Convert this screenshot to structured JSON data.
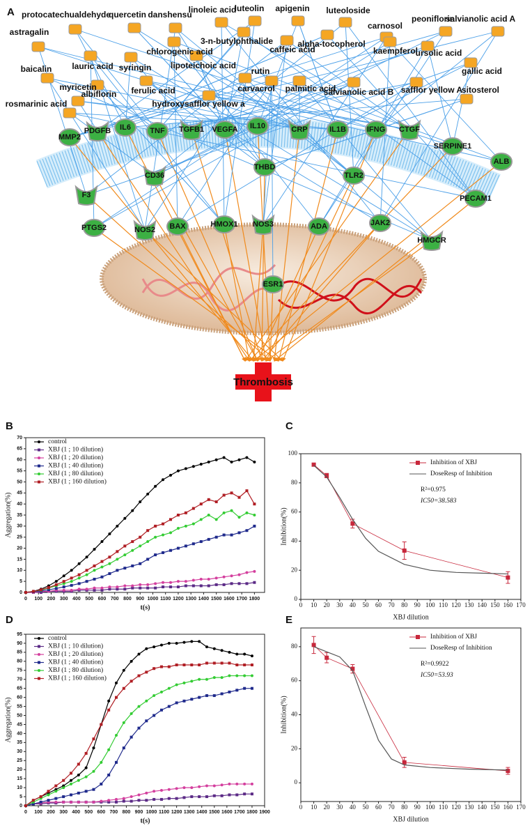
{
  "panel_labels": [
    "A",
    "B",
    "C",
    "D",
    "E"
  ],
  "diagram": {
    "compounds": [
      "protocatechualdehyde",
      "quercetin",
      "danshensu",
      "linoleic acid",
      "luteolin",
      "apigenin",
      "luteoloside",
      "carnosol",
      "peoniflorin",
      "salvianolic acid A",
      "astragalin",
      "chlorogenic acid",
      "3-n-butylphthalide",
      "caffeic acid",
      "alpha-tocopherol",
      "kaempferol",
      "ursolic acid",
      "gallic acid",
      "lauric acid",
      "syringin",
      "lipoteichoic acid",
      "hydroxysafflor yellow a",
      "carvacrol",
      "rutin",
      "palmitic acid",
      "salvianolic acid B",
      "safflor yellow A",
      "sitosterol",
      "baicalin",
      "ferulic acid",
      "albiflorin",
      "myricetin",
      "rosmarinic acid"
    ],
    "targets": [
      "IL6",
      "PDGFB",
      "MMP2",
      "TNF",
      "TGFB1",
      "VEGFA",
      "IL10",
      "CRP",
      "IL1B",
      "IFNG",
      "CTGF",
      "SERPINE1",
      "ALB",
      "CD36",
      "THBD",
      "TLR2",
      "F3",
      "PECAM1",
      "PTGS2",
      "NOS2",
      "BAX",
      "HMOX1",
      "NOS3",
      "ADA",
      "JAK2",
      "HMGCR",
      "ESR1"
    ],
    "outcome": "Thrombosis"
  },
  "chart_data": [
    {
      "type": "line",
      "xlabel": "t(s)",
      "ylabel": "Aggregation(%)",
      "x": [
        0,
        60,
        120,
        180,
        240,
        300,
        360,
        420,
        480,
        540,
        600,
        660,
        720,
        780,
        840,
        900,
        960,
        1020,
        1080,
        1140,
        1200,
        1260,
        1320,
        1380,
        1440,
        1500,
        1560,
        1620,
        1680,
        1740,
        1800
      ],
      "series": [
        {
          "name": "control",
          "color": "#000000",
          "values": [
            0,
            0.5,
            1.5,
            3,
            5,
            7.5,
            10,
            13,
            16,
            19.5,
            23,
            26.5,
            30,
            33.5,
            37,
            41,
            44.5,
            48,
            51,
            53,
            55,
            56,
            57,
            58,
            59,
            60,
            61,
            59,
            60,
            61,
            59
          ]
        },
        {
          "name": "XBJ (1 ; 10 dilution)",
          "color": "#5b2a86",
          "values": [
            0,
            0,
            0,
            0.5,
            0.5,
            0.5,
            0.5,
            1,
            1,
            1,
            1,
            1.5,
            1.5,
            1.5,
            2,
            2,
            2,
            2,
            2.5,
            2.5,
            2.5,
            3,
            3,
            3,
            3,
            3.5,
            3.5,
            4,
            4,
            4,
            4.5
          ]
        },
        {
          "name": "XBJ (1 ; 20 dilution)",
          "color": "#d43f9e",
          "values": [
            0,
            0,
            0.5,
            0.5,
            1,
            1,
            1,
            1.5,
            1.5,
            2,
            2,
            2.5,
            2.5,
            3,
            3,
            3.5,
            3.5,
            4,
            4.5,
            4.5,
            5,
            5,
            5.5,
            6,
            6,
            6.5,
            7,
            7.5,
            8,
            9,
            9.5
          ]
        },
        {
          "name": "XBJ (1 ; 40 dilution)",
          "color": "#1f2a8c",
          "values": [
            0,
            0.3,
            0.7,
            1.2,
            1.8,
            2.5,
            3.2,
            4,
            5,
            6,
            7,
            8.5,
            10,
            11,
            12,
            13,
            15,
            17,
            18,
            19,
            20,
            21,
            22,
            23,
            24,
            25,
            26,
            26,
            27,
            28,
            30
          ]
        },
        {
          "name": "XBJ (1 ; 80 dilution)",
          "color": "#33cc33",
          "values": [
            0,
            0.5,
            1,
            2,
            3,
            4,
            5,
            6.5,
            8,
            10,
            11.5,
            13,
            15,
            17,
            19,
            21,
            23,
            25,
            26,
            27,
            29,
            30,
            31,
            33,
            35,
            33,
            36,
            37,
            34,
            36,
            35
          ]
        },
        {
          "name": "XBJ (1 ; 160 dilution)",
          "color": "#b01e24",
          "values": [
            0,
            0.5,
            1.2,
            2.2,
            3.5,
            5,
            6.5,
            8,
            10,
            12,
            14,
            16,
            18.5,
            21,
            23,
            25,
            28,
            30,
            31,
            33,
            35,
            36,
            38,
            40,
            42,
            41,
            44,
            45,
            43,
            46,
            40
          ]
        }
      ],
      "xlim": [
        0,
        1880
      ],
      "ylim": [
        0,
        70
      ],
      "xticks": [
        0,
        100,
        200,
        300,
        400,
        500,
        600,
        700,
        800,
        900,
        1000,
        1100,
        1200,
        1300,
        1400,
        1500,
        1600,
        1700,
        1800
      ],
      "yticks": [
        0,
        5,
        10,
        15,
        20,
        25,
        30,
        35,
        40,
        45,
        50,
        55,
        60,
        65,
        70
      ],
      "legend": "upper left"
    },
    {
      "type": "scatter",
      "xlabel": "XBJ dilution",
      "ylabel": "Inhibition(%)",
      "x": [
        10,
        20,
        40,
        80,
        160
      ],
      "series": [
        {
          "name": "Inhibition of XBJ",
          "color": "#c8283c",
          "values": [
            92.5,
            85,
            52,
            33.5,
            15
          ],
          "errors": [
            1,
            1.5,
            3,
            6,
            4
          ]
        },
        {
          "name": "DoseResp of Inhibition",
          "color": "#555555",
          "x": [
            10,
            20,
            30,
            40,
            50,
            60,
            80,
            100,
            120,
            140,
            160
          ],
          "values": [
            92,
            84,
            70,
            55,
            42,
            33,
            24,
            20,
            18.5,
            18,
            17.5
          ]
        }
      ],
      "annotations": [
        "R²=0.975",
        "IC50=38.583"
      ],
      "xlim": [
        0,
        170
      ],
      "ylim": [
        0,
        100
      ],
      "xticks": [
        0,
        10,
        20,
        30,
        40,
        50,
        60,
        70,
        80,
        90,
        100,
        110,
        120,
        130,
        140,
        150,
        160,
        170
      ],
      "yticks": [
        0,
        20,
        40,
        60,
        80,
        100
      ],
      "legend": "upper right"
    },
    {
      "type": "line",
      "xlabel": "t(s)",
      "ylabel": "Aggregation(%)",
      "x": [
        0,
        60,
        120,
        180,
        240,
        300,
        360,
        420,
        480,
        540,
        600,
        660,
        720,
        780,
        840,
        900,
        960,
        1020,
        1080,
        1140,
        1200,
        1260,
        1320,
        1380,
        1440,
        1500,
        1560,
        1620,
        1680,
        1740,
        1800
      ],
      "series": [
        {
          "name": "control",
          "color": "#000000",
          "values": [
            0,
            3,
            5,
            7,
            9,
            11,
            14,
            17,
            21,
            32,
            45,
            58,
            68,
            75,
            80,
            84,
            87,
            88,
            89,
            90,
            90,
            90.5,
            91,
            91,
            88,
            87,
            86,
            85,
            84,
            84,
            83
          ]
        },
        {
          "name": "XBJ (1 ; 10 dilution)",
          "color": "#5b2a86",
          "values": [
            0,
            1,
            1,
            1.5,
            1.5,
            2,
            2,
            2,
            2,
            2,
            2,
            2,
            2,
            2.5,
            2.5,
            3,
            3,
            3.5,
            3.5,
            4,
            4,
            4.5,
            5,
            5,
            5,
            5.5,
            5.5,
            6,
            6,
            6.5,
            6.5
          ]
        },
        {
          "name": "XBJ (1 ; 20 dilution)",
          "color": "#d43f9e",
          "values": [
            0,
            1,
            1.5,
            2,
            2,
            2,
            2,
            2,
            2,
            2,
            2.5,
            3,
            3.5,
            4,
            5,
            6,
            7,
            8,
            8.5,
            9,
            9.5,
            10,
            10,
            10.5,
            11,
            11,
            11.5,
            12,
            12,
            12,
            12
          ]
        },
        {
          "name": "XBJ (1 ; 40 dilution)",
          "color": "#1f2a8c",
          "values": [
            0,
            1,
            2,
            3,
            4,
            5,
            6,
            7,
            8,
            9,
            12,
            17,
            24,
            32,
            38,
            43,
            47,
            50,
            53,
            55,
            57,
            58,
            59,
            60,
            61,
            61,
            62,
            63,
            64,
            65,
            65
          ]
        },
        {
          "name": "XBJ (1 ; 80 dilution)",
          "color": "#33cc33",
          "values": [
            0,
            2,
            4,
            6,
            8,
            10,
            12,
            14,
            16,
            19,
            24,
            31,
            39,
            46,
            51,
            55,
            58,
            61,
            63,
            65,
            67,
            68,
            69,
            70,
            70,
            71,
            71,
            72,
            72,
            72,
            72
          ]
        },
        {
          "name": "XBJ (1 ; 160 dilution)",
          "color": "#b01e24",
          "values": [
            0,
            3,
            5,
            8,
            11,
            14,
            18,
            23,
            29,
            37,
            45,
            53,
            60,
            65,
            69,
            72,
            74,
            76,
            77,
            77,
            78,
            78,
            78,
            78,
            79,
            79,
            79,
            79,
            78,
            78,
            78
          ]
        }
      ],
      "xlim": [
        0,
        1900
      ],
      "ylim": [
        0,
        95
      ],
      "xticks": [
        0,
        100,
        200,
        300,
        400,
        500,
        600,
        700,
        800,
        900,
        1000,
        1100,
        1200,
        1300,
        1400,
        1500,
        1600,
        1700,
        1800,
        1900
      ],
      "yticks": [
        0,
        5,
        10,
        15,
        20,
        25,
        30,
        35,
        40,
        45,
        50,
        55,
        60,
        65,
        70,
        75,
        80,
        85,
        90,
        95
      ],
      "legend": "upper left"
    },
    {
      "type": "scatter",
      "xlabel": "XBJ dilution",
      "ylabel": "Inhibition(%)",
      "x": [
        10,
        20,
        40,
        80,
        160
      ],
      "series": [
        {
          "name": "Inhibition of XBJ",
          "color": "#c8283c",
          "values": [
            81,
            73.5,
            67,
            12,
            7
          ],
          "errors": [
            5,
            3,
            2.5,
            3,
            2
          ]
        },
        {
          "name": "DoseResp of Inhibition",
          "color": "#555555",
          "x": [
            10,
            20,
            30,
            40,
            50,
            60,
            70,
            80,
            100,
            130,
            160
          ],
          "values": [
            80,
            77,
            74,
            66,
            45,
            25,
            14,
            10.5,
            9,
            8,
            7.5
          ]
        }
      ],
      "annotations": [
        "R²=0.9922",
        "IC50=53.93"
      ],
      "xlim": [
        0,
        170
      ],
      "ylim": [
        -11,
        91
      ],
      "xticks": [
        0,
        10,
        20,
        30,
        40,
        50,
        60,
        70,
        80,
        90,
        100,
        110,
        120,
        130,
        140,
        150,
        160,
        170
      ],
      "yticks": [
        0,
        20,
        40,
        60,
        80
      ],
      "legend": "upper right"
    }
  ]
}
